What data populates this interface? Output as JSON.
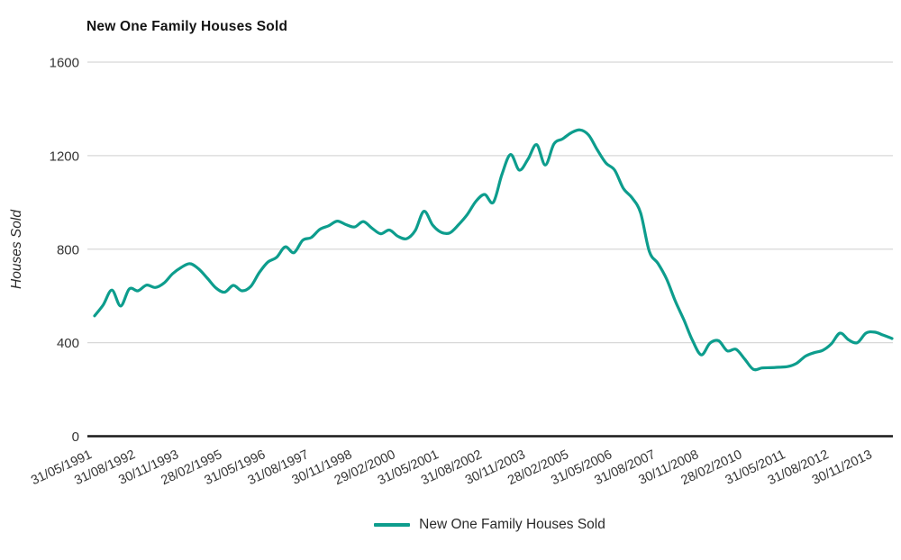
{
  "chart": {
    "title": "New One Family Houses Sold",
    "y_axis_title": "Houses Sold",
    "legend_label": "New One Family Houses Sold",
    "colors": {
      "line": "#0D9D8D",
      "grid": "#D8D8D8",
      "zero_axis": "#1A1A1A",
      "tick_text": "#343434",
      "axis_title_text": "#2B2B2B",
      "title_text": "#141414",
      "background": "#FFFFFF"
    }
  },
  "chart_data": {
    "type": "line",
    "title": "New One Family Houses Sold",
    "xlabel": "",
    "ylabel": "Houses Sold",
    "ylim": [
      0,
      1600
    ],
    "yticks": [
      0,
      400,
      800,
      1200,
      1600
    ],
    "grid": "horizontal-only",
    "legend_position": "bottom-center",
    "x_tick_interval": 5,
    "visible_x_tick_labels": [
      "31/05/1991",
      "31/08/1992",
      "30/11/1993",
      "28/02/1995",
      "31/05/1996",
      "31/08/1997",
      "30/11/1998",
      "29/02/2000",
      "31/05/2001",
      "31/08/2002",
      "30/11/2003",
      "28/02/2005",
      "31/05/2006",
      "31/08/2007",
      "30/11/2008",
      "28/02/2010",
      "31/05/2011",
      "31/08/2012",
      "30/11/2013"
    ],
    "x": [
      "31/05/1991",
      "31/08/1991",
      "30/11/1991",
      "29/02/1992",
      "31/05/1992",
      "31/08/1992",
      "30/11/1992",
      "28/02/1993",
      "31/05/1993",
      "31/08/1993",
      "30/11/1993",
      "28/02/1994",
      "31/05/1994",
      "31/08/1994",
      "30/11/1994",
      "28/02/1995",
      "31/05/1995",
      "31/08/1995",
      "30/11/1995",
      "29/02/1996",
      "31/05/1996",
      "31/08/1996",
      "30/11/1996",
      "28/02/1997",
      "31/05/1997",
      "31/08/1997",
      "30/11/1997",
      "28/02/1998",
      "31/05/1998",
      "31/08/1998",
      "30/11/1998",
      "28/02/1999",
      "31/05/1999",
      "31/08/1999",
      "30/11/1999",
      "29/02/2000",
      "31/05/2000",
      "31/08/2000",
      "30/11/2000",
      "28/02/2001",
      "31/05/2001",
      "31/08/2001",
      "30/11/2001",
      "28/02/2002",
      "31/05/2002",
      "31/08/2002",
      "30/11/2002",
      "28/02/2003",
      "31/05/2003",
      "31/08/2003",
      "30/11/2003",
      "29/02/2004",
      "31/05/2004",
      "31/08/2004",
      "30/11/2004",
      "28/02/2005",
      "31/05/2005",
      "31/08/2005",
      "30/11/2005",
      "28/02/2006",
      "31/05/2006",
      "31/08/2006",
      "30/11/2006",
      "28/02/2007",
      "31/05/2007",
      "31/08/2007",
      "30/11/2007",
      "29/02/2008",
      "31/05/2008",
      "31/08/2008",
      "30/11/2008",
      "28/02/2009",
      "31/05/2009",
      "31/08/2009",
      "30/11/2009",
      "28/02/2010",
      "31/05/2010",
      "31/08/2010",
      "30/11/2010",
      "28/02/2011",
      "31/05/2011",
      "31/08/2011",
      "30/11/2011",
      "29/02/2012",
      "31/05/2012",
      "31/08/2012",
      "30/11/2012",
      "28/02/2013",
      "31/05/2013",
      "31/08/2013",
      "30/11/2013",
      "28/02/2014",
      "31/05/2014"
    ],
    "series": [
      {
        "name": "New One Family Houses Sold",
        "color": "#0D9D8D",
        "values": [
          515,
          562,
          625,
          557,
          630,
          622,
          646,
          636,
          655,
          695,
          722,
          738,
          716,
          676,
          634,
          616,
          645,
          622,
          640,
          700,
          745,
          765,
          810,
          785,
          838,
          850,
          885,
          900,
          920,
          905,
          895,
          918,
          890,
          866,
          882,
          855,
          845,
          880,
          962,
          903,
          872,
          870,
          905,
          948,
          1005,
          1034,
          1000,
          1120,
          1205,
          1138,
          1185,
          1247,
          1160,
          1250,
          1272,
          1298,
          1310,
          1288,
          1225,
          1168,
          1138,
          1060,
          1020,
          955,
          790,
          739,
          672,
          578,
          497,
          408,
          348,
          398,
          408,
          365,
          372,
          330,
          286,
          292,
          293,
          295,
          298,
          312,
          342,
          357,
          367,
          395,
          441,
          412,
          400,
          441,
          445,
          432,
          418
        ]
      }
    ]
  }
}
